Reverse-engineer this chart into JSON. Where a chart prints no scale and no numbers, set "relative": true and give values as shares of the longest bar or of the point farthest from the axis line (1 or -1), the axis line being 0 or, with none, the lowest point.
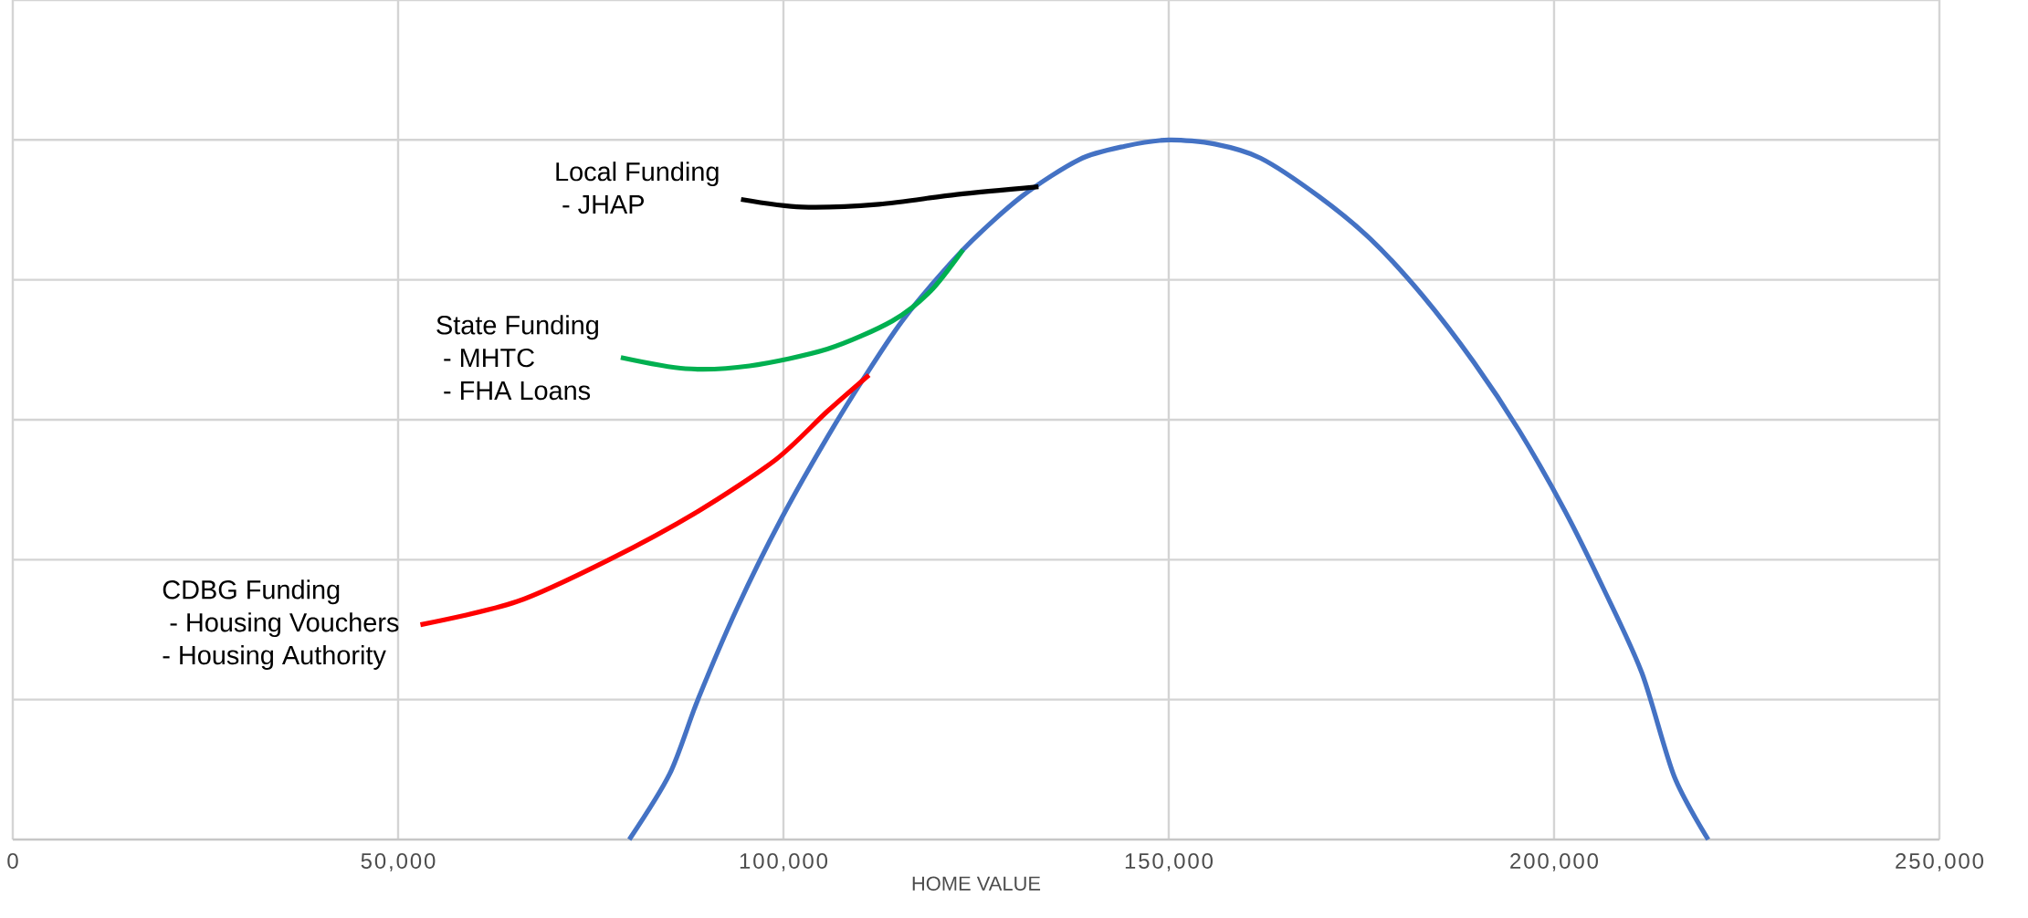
{
  "chart_data": {
    "type": "line",
    "relative": true,
    "xlabel": "HOME VALUE",
    "xlim": [
      0,
      250000
    ],
    "xticks": [
      0,
      {
        "value": 50000,
        "label": "50,000"
      },
      {
        "value": 100000,
        "label": "100,000"
      },
      {
        "value": 150000,
        "label": "150,000"
      },
      {
        "value": 200000,
        "label": "200,000"
      },
      {
        "value": 250000,
        "label": "250,000"
      }
    ],
    "tick_labels": "x",
    "grid": true,
    "marker": "none",
    "line_style": "solid",
    "series": [
      {
        "color": "#4472c4",
        "x": [
          80000,
          85250,
          88900,
          94000,
          99800,
          105700,
          110700,
          115800,
          123300,
          130900,
          138400,
          144300,
          150000,
          156000,
          161900,
          169500,
          176200,
          182900,
          189600,
          195500,
          201400,
          206400,
          211400,
          215600,
          220000
        ],
        "values": [
          0,
          0.094,
          0.2,
          0.331,
          0.46,
          0.575,
          0.664,
          0.747,
          0.843,
          0.919,
          0.972,
          0.991,
          1,
          0.994,
          0.974,
          0.919,
          0.858,
          0.778,
          0.682,
          0.584,
          0.47,
          0.359,
          0.238,
          0.09,
          0
        ]
      },
      {
        "color": "#000000",
        "x": [
          94500,
          102400,
          112400,
          122500,
          133100
        ],
        "values": [
          0.915,
          0.904,
          0.908,
          0.922,
          0.933
        ]
      },
      {
        "color": "#00b050",
        "x": [
          78900,
          87300,
          95600,
          105700,
          114100,
          119100,
          123300
        ],
        "values": [
          0.689,
          0.673,
          0.677,
          0.701,
          0.741,
          0.784,
          0.843
        ]
      },
      {
        "color": "#ff0000",
        "x": [
          52900,
          65400,
          77200,
          88900,
          99000,
          105700,
          111100
        ],
        "values": [
          0.307,
          0.34,
          0.399,
          0.469,
          0.543,
          0.612,
          0.664
        ]
      }
    ],
    "annotations": [
      "Local Funding",
      " - JHAP",
      "State Funding",
      " - MHTC",
      " - FHA Loans",
      "CDBG Funding",
      " - Housing Vouchers",
      "- Housing Authority"
    ]
  }
}
